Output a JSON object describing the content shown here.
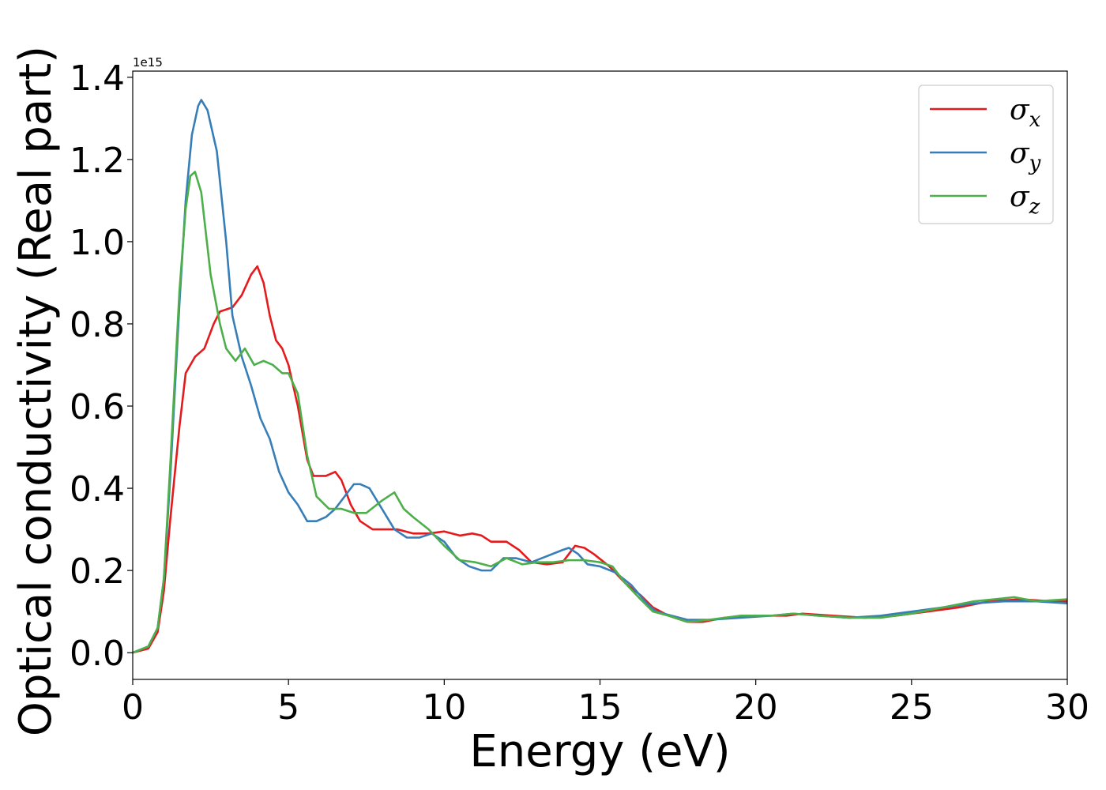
{
  "chart_data": {
    "type": "line",
    "title": "",
    "xlabel": "Energy (eV)",
    "ylabel": "Optical conductivity (Real part)",
    "y_offset_label": "1e15",
    "xlim": [
      0,
      30
    ],
    "ylim": [
      -0.065,
      1.415
    ],
    "xticks": [
      0,
      5,
      10,
      15,
      20,
      25,
      30
    ],
    "xtick_labels": [
      "0",
      "5",
      "10",
      "15",
      "20",
      "25",
      "30"
    ],
    "yticks": [
      0.0,
      0.2,
      0.4,
      0.6,
      0.8,
      1.0,
      1.2,
      1.4
    ],
    "ytick_labels": [
      "0.0",
      "0.2",
      "0.4",
      "0.6",
      "0.8",
      "1.0",
      "1.2",
      "1.4"
    ],
    "grid": false,
    "legend": "top-right",
    "series": [
      {
        "name": "σx",
        "base": "σ",
        "sub": "x",
        "color": "#e41a1c",
        "points": [
          [
            0,
            0.0
          ],
          [
            0.5,
            0.01
          ],
          [
            0.8,
            0.05
          ],
          [
            1.0,
            0.15
          ],
          [
            1.2,
            0.32
          ],
          [
            1.5,
            0.55
          ],
          [
            1.7,
            0.68
          ],
          [
            2.0,
            0.72
          ],
          [
            2.3,
            0.74
          ],
          [
            2.6,
            0.8
          ],
          [
            2.8,
            0.83
          ],
          [
            3.2,
            0.84
          ],
          [
            3.5,
            0.87
          ],
          [
            3.8,
            0.92
          ],
          [
            4.0,
            0.94
          ],
          [
            4.2,
            0.9
          ],
          [
            4.4,
            0.82
          ],
          [
            4.6,
            0.76
          ],
          [
            4.8,
            0.74
          ],
          [
            5.0,
            0.7
          ],
          [
            5.3,
            0.6
          ],
          [
            5.6,
            0.47
          ],
          [
            5.8,
            0.43
          ],
          [
            6.2,
            0.43
          ],
          [
            6.5,
            0.44
          ],
          [
            6.7,
            0.42
          ],
          [
            7.0,
            0.36
          ],
          [
            7.3,
            0.32
          ],
          [
            7.7,
            0.3
          ],
          [
            8.5,
            0.3
          ],
          [
            9.0,
            0.29
          ],
          [
            9.5,
            0.29
          ],
          [
            10.0,
            0.295
          ],
          [
            10.5,
            0.285
          ],
          [
            10.9,
            0.29
          ],
          [
            11.2,
            0.285
          ],
          [
            11.5,
            0.27
          ],
          [
            12.0,
            0.27
          ],
          [
            12.4,
            0.25
          ],
          [
            12.8,
            0.22
          ],
          [
            13.3,
            0.215
          ],
          [
            13.8,
            0.22
          ],
          [
            14.2,
            0.26
          ],
          [
            14.5,
            0.255
          ],
          [
            14.8,
            0.24
          ],
          [
            15.3,
            0.21
          ],
          [
            15.8,
            0.17
          ],
          [
            16.3,
            0.14
          ],
          [
            16.7,
            0.11
          ],
          [
            17.2,
            0.09
          ],
          [
            17.8,
            0.075
          ],
          [
            18.3,
            0.075
          ],
          [
            19.0,
            0.085
          ],
          [
            20.0,
            0.09
          ],
          [
            21.0,
            0.09
          ],
          [
            21.5,
            0.095
          ],
          [
            22.5,
            0.09
          ],
          [
            23.5,
            0.085
          ],
          [
            24.5,
            0.09
          ],
          [
            25.5,
            0.1
          ],
          [
            26.5,
            0.11
          ],
          [
            27.5,
            0.125
          ],
          [
            28.5,
            0.13
          ],
          [
            29.5,
            0.125
          ],
          [
            30,
            0.125
          ]
        ]
      },
      {
        "name": "σy",
        "base": "σ",
        "sub": "y",
        "color": "#377eb8",
        "points": [
          [
            0,
            0.0
          ],
          [
            0.5,
            0.015
          ],
          [
            0.8,
            0.06
          ],
          [
            1.0,
            0.18
          ],
          [
            1.2,
            0.42
          ],
          [
            1.5,
            0.85
          ],
          [
            1.7,
            1.1
          ],
          [
            1.9,
            1.26
          ],
          [
            2.1,
            1.33
          ],
          [
            2.2,
            1.345
          ],
          [
            2.4,
            1.32
          ],
          [
            2.7,
            1.22
          ],
          [
            3.0,
            1.0
          ],
          [
            3.2,
            0.82
          ],
          [
            3.5,
            0.72
          ],
          [
            3.8,
            0.65
          ],
          [
            4.1,
            0.57
          ],
          [
            4.4,
            0.52
          ],
          [
            4.7,
            0.44
          ],
          [
            5.0,
            0.39
          ],
          [
            5.3,
            0.36
          ],
          [
            5.6,
            0.32
          ],
          [
            5.9,
            0.32
          ],
          [
            6.2,
            0.33
          ],
          [
            6.5,
            0.35
          ],
          [
            6.8,
            0.38
          ],
          [
            7.1,
            0.41
          ],
          [
            7.3,
            0.41
          ],
          [
            7.6,
            0.4
          ],
          [
            8.0,
            0.35
          ],
          [
            8.4,
            0.3
          ],
          [
            8.8,
            0.28
          ],
          [
            9.2,
            0.28
          ],
          [
            9.6,
            0.29
          ],
          [
            10.0,
            0.27
          ],
          [
            10.4,
            0.23
          ],
          [
            10.8,
            0.21
          ],
          [
            11.2,
            0.2
          ],
          [
            11.5,
            0.2
          ],
          [
            11.9,
            0.23
          ],
          [
            12.3,
            0.23
          ],
          [
            12.8,
            0.22
          ],
          [
            13.3,
            0.235
          ],
          [
            13.8,
            0.25
          ],
          [
            14.0,
            0.255
          ],
          [
            14.3,
            0.24
          ],
          [
            14.6,
            0.215
          ],
          [
            15.0,
            0.21
          ],
          [
            15.5,
            0.195
          ],
          [
            16.0,
            0.165
          ],
          [
            16.5,
            0.12
          ],
          [
            16.8,
            0.1
          ],
          [
            17.3,
            0.09
          ],
          [
            17.8,
            0.08
          ],
          [
            18.5,
            0.08
          ],
          [
            19.5,
            0.085
          ],
          [
            20.5,
            0.09
          ],
          [
            21.2,
            0.095
          ],
          [
            22.0,
            0.09
          ],
          [
            23.0,
            0.085
          ],
          [
            24.0,
            0.09
          ],
          [
            25.0,
            0.1
          ],
          [
            26.0,
            0.11
          ],
          [
            27.0,
            0.12
          ],
          [
            28.0,
            0.125
          ],
          [
            29.0,
            0.125
          ],
          [
            30,
            0.12
          ]
        ]
      },
      {
        "name": "σz",
        "base": "σ",
        "sub": "z",
        "color": "#4daf4a",
        "points": [
          [
            0,
            0.0
          ],
          [
            0.5,
            0.015
          ],
          [
            0.8,
            0.06
          ],
          [
            1.0,
            0.18
          ],
          [
            1.2,
            0.45
          ],
          [
            1.5,
            0.88
          ],
          [
            1.7,
            1.08
          ],
          [
            1.85,
            1.16
          ],
          [
            2.0,
            1.17
          ],
          [
            2.2,
            1.12
          ],
          [
            2.5,
            0.92
          ],
          [
            2.8,
            0.8
          ],
          [
            3.0,
            0.74
          ],
          [
            3.3,
            0.71
          ],
          [
            3.6,
            0.74
          ],
          [
            3.9,
            0.7
          ],
          [
            4.2,
            0.71
          ],
          [
            4.5,
            0.7
          ],
          [
            4.8,
            0.68
          ],
          [
            5.0,
            0.68
          ],
          [
            5.3,
            0.63
          ],
          [
            5.6,
            0.48
          ],
          [
            5.9,
            0.38
          ],
          [
            6.3,
            0.35
          ],
          [
            6.7,
            0.35
          ],
          [
            7.1,
            0.34
          ],
          [
            7.5,
            0.34
          ],
          [
            8.0,
            0.37
          ],
          [
            8.4,
            0.39
          ],
          [
            8.7,
            0.35
          ],
          [
            9.0,
            0.33
          ],
          [
            9.5,
            0.3
          ],
          [
            10.0,
            0.26
          ],
          [
            10.5,
            0.225
          ],
          [
            11.0,
            0.22
          ],
          [
            11.5,
            0.21
          ],
          [
            12.0,
            0.23
          ],
          [
            12.5,
            0.215
          ],
          [
            13.0,
            0.22
          ],
          [
            13.5,
            0.22
          ],
          [
            14.0,
            0.225
          ],
          [
            14.5,
            0.225
          ],
          [
            15.0,
            0.22
          ],
          [
            15.4,
            0.21
          ],
          [
            15.8,
            0.17
          ],
          [
            16.3,
            0.13
          ],
          [
            16.7,
            0.1
          ],
          [
            17.2,
            0.09
          ],
          [
            17.8,
            0.075
          ],
          [
            18.5,
            0.08
          ],
          [
            19.5,
            0.09
          ],
          [
            20.5,
            0.09
          ],
          [
            21.2,
            0.095
          ],
          [
            22.0,
            0.09
          ],
          [
            23.0,
            0.085
          ],
          [
            24.0,
            0.085
          ],
          [
            25.0,
            0.095
          ],
          [
            26.0,
            0.11
          ],
          [
            27.0,
            0.125
          ],
          [
            28.3,
            0.135
          ],
          [
            29.0,
            0.125
          ],
          [
            30,
            0.13
          ]
        ]
      }
    ]
  }
}
